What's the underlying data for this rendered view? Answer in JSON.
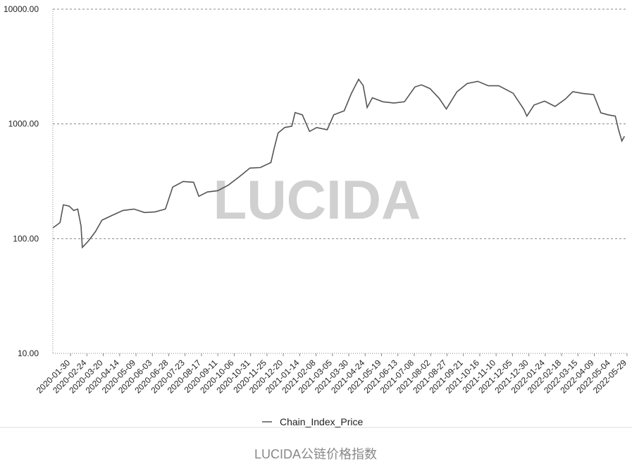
{
  "chart_data": {
    "type": "line",
    "log_scale": true,
    "grid": true,
    "watermark": "LUCIDA",
    "footer": "LUCIDA公链价格指数",
    "x": [
      "2020-01-03",
      "2020-01-14",
      "2020-01-19",
      "2020-01-28",
      "2020-02-04",
      "2020-02-10",
      "2020-02-15",
      "2020-02-17",
      "2020-02-26",
      "2020-03-08",
      "2020-03-18",
      "2020-04-03",
      "2020-04-19",
      "2020-05-06",
      "2020-05-22",
      "2020-06-07",
      "2020-06-23",
      "2020-07-04",
      "2020-07-20",
      "2020-08-05",
      "2020-08-13",
      "2020-08-26",
      "2020-09-11",
      "2020-09-27",
      "2020-10-14",
      "2020-10-30",
      "2020-11-15",
      "2020-12-01",
      "2020-12-06",
      "2020-12-12",
      "2020-12-22",
      "2021-01-02",
      "2021-01-07",
      "2021-01-18",
      "2021-01-29",
      "2021-02-09",
      "2021-02-25",
      "2021-03-07",
      "2021-03-23",
      "2021-04-03",
      "2021-04-14",
      "2021-04-21",
      "2021-04-27",
      "2021-05-05",
      "2021-05-21",
      "2021-06-07",
      "2021-06-23",
      "2021-07-09",
      "2021-07-19",
      "2021-08-01",
      "2021-08-15",
      "2021-08-26",
      "2021-09-11",
      "2021-09-27",
      "2021-10-13",
      "2021-10-29",
      "2021-11-14",
      "2021-12-06",
      "2021-12-22",
      "2021-12-27",
      "2022-01-07",
      "2022-01-23",
      "2022-02-08",
      "2022-02-24",
      "2022-03-07",
      "2022-03-23",
      "2022-04-08",
      "2022-04-19",
      "2022-04-30",
      "2022-05-11",
      "2022-05-16",
      "2022-05-21",
      "2022-05-25"
    ],
    "series": [
      {
        "name": "Chain_Index_Price",
        "color": "#555555",
        "values": [
          124,
          138,
          197,
          192,
          176,
          181,
          129,
          84,
          95,
          115,
          145,
          160,
          176,
          181,
          169,
          171,
          181,
          281,
          315,
          310,
          234,
          255,
          262,
          293,
          347,
          412,
          417,
          461,
          612,
          833,
          930,
          955,
          1255,
          1200,
          860,
          930,
          890,
          1200,
          1300,
          1850,
          2450,
          2160,
          1390,
          1690,
          1560,
          1520,
          1560,
          2100,
          2190,
          2030,
          1670,
          1350,
          1900,
          2250,
          2350,
          2150,
          2150,
          1850,
          1350,
          1170,
          1460,
          1580,
          1420,
          1650,
          1910,
          1840,
          1800,
          1250,
          1200,
          1170,
          890,
          710,
          780
        ]
      }
    ],
    "xlim": [
      "2020-01-03",
      "2022-05-29"
    ],
    "xticks": [
      "2020-01-30",
      "2020-02-24",
      "2020-03-20",
      "2020-04-14",
      "2020-05-09",
      "2020-06-03",
      "2020-06-28",
      "2020-07-23",
      "2020-08-17",
      "2020-09-11",
      "2020-10-06",
      "2020-10-31",
      "2020-11-25",
      "2020-12-20",
      "2021-01-14",
      "2021-02-08",
      "2021-03-05",
      "2021-03-30",
      "2021-04-24",
      "2021-05-19",
      "2021-06-13",
      "2021-07-08",
      "2021-08-02",
      "2021-08-27",
      "2021-09-21",
      "2021-10-16",
      "2021-11-10",
      "2021-12-05",
      "2021-12-30",
      "2022-01-24",
      "2022-02-18",
      "2022-03-15",
      "2022-04-09",
      "2022-05-04",
      "2022-05-29"
    ],
    "ylim": [
      10,
      10000
    ],
    "yticks": [
      {
        "value": 10,
        "label": "10.00"
      },
      {
        "value": 100,
        "label": "100.00"
      },
      {
        "value": 1000,
        "label": "1000.00"
      },
      {
        "value": 10000,
        "label": "10000.00"
      }
    ]
  }
}
